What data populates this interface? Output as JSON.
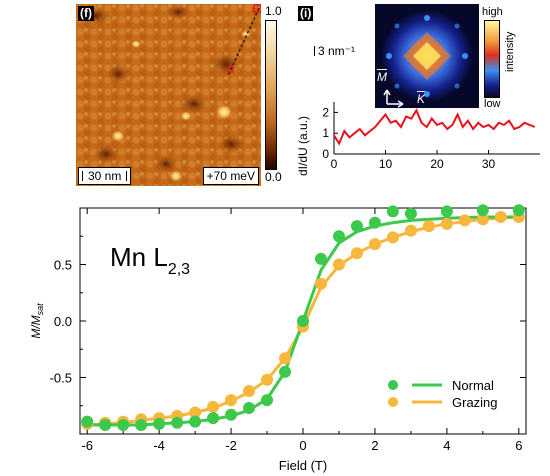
{
  "panel_f": {
    "label": "(f)",
    "scale_bar": "30 nm",
    "energy": "+70 meV",
    "colorbar_max": "1.0",
    "colorbar_min": "0.0"
  },
  "panel_i": {
    "label": "(i)",
    "scale_bar": "3 nm⁻¹",
    "fft_high": "high",
    "fft_low": "low",
    "fft_axis": "intensity",
    "dir_m": "M",
    "dir_k": "K"
  },
  "chart_data": [
    {
      "type": "line",
      "title": "",
      "xlabel": "",
      "ylabel": "dI/dU (a.u.)",
      "xlim": [
        0,
        40
      ],
      "ylim": [
        0,
        2.5
      ],
      "x_ticks": [
        "0",
        "10",
        "20",
        "30"
      ],
      "y_ticks": [
        "0",
        "1",
        "2"
      ],
      "series": [
        {
          "color": "#e8121c",
          "x": [
            0,
            1,
            2,
            3,
            4,
            5,
            6,
            7,
            8,
            9,
            10,
            11,
            12,
            13,
            14,
            15,
            16,
            17,
            18,
            19,
            20,
            21,
            22,
            23,
            24,
            25,
            26,
            27,
            28,
            29,
            30,
            31,
            32,
            33,
            34,
            35,
            36,
            37,
            38,
            39
          ],
          "y": [
            0.9,
            0.5,
            1.1,
            0.8,
            1.0,
            1.2,
            0.9,
            1.1,
            1.3,
            1.6,
            1.9,
            1.5,
            1.6,
            1.3,
            1.8,
            1.7,
            2.1,
            1.5,
            1.3,
            1.7,
            1.4,
            1.5,
            1.2,
            1.4,
            1.9,
            1.3,
            1.6,
            1.2,
            1.5,
            1.3,
            1.4,
            1.2,
            1.5,
            1.4,
            1.6,
            1.2,
            1.3,
            1.5,
            1.4,
            1.3
          ]
        }
      ]
    },
    {
      "type": "scatter",
      "title": "Mn L2,3",
      "xlabel": "Field (T)",
      "ylabel": "M/Msat",
      "xlim": [
        -6.2,
        6.2
      ],
      "ylim": [
        -1.0,
        1.0
      ],
      "x_ticks": [
        "-6",
        "-4",
        "-2",
        "0",
        "2",
        "4",
        "6"
      ],
      "y_ticks": [
        "0.5",
        "0.0",
        "-0.5"
      ],
      "legend": "bottom-right",
      "series": [
        {
          "name": "Normal",
          "color": "#3cc84a",
          "x": [
            -6.0,
            -5.5,
            -5.0,
            -4.5,
            -4.0,
            -3.5,
            -3.0,
            -2.5,
            -2.0,
            -1.5,
            -1.0,
            -0.5,
            0.0,
            0.5,
            1.0,
            1.5,
            2.0,
            2.5,
            3.0,
            4.0,
            5.0,
            6.0
          ],
          "y": [
            -0.89,
            -0.92,
            -0.92,
            -0.92,
            -0.91,
            -0.9,
            -0.89,
            -0.86,
            -0.83,
            -0.77,
            -0.7,
            -0.45,
            0.0,
            0.55,
            0.75,
            0.84,
            0.87,
            0.97,
            0.95,
            0.97,
            0.98,
            0.98
          ],
          "fit_y": [
            -0.92,
            -0.92,
            -0.92,
            -0.92,
            -0.91,
            -0.9,
            -0.89,
            -0.87,
            -0.84,
            -0.79,
            -0.69,
            -0.45,
            0.0,
            0.45,
            0.69,
            0.79,
            0.84,
            0.87,
            0.89,
            0.91,
            0.92,
            0.92
          ]
        },
        {
          "name": "Grazing",
          "color": "#f6b73c",
          "x": [
            -6.0,
            -5.5,
            -5.0,
            -4.5,
            -4.0,
            -3.5,
            -3.0,
            -2.5,
            -2.0,
            -1.5,
            -1.0,
            -0.5,
            0.0,
            0.5,
            1.0,
            1.5,
            2.0,
            2.5,
            3.0,
            3.5,
            4.0,
            4.5,
            5.0,
            5.5,
            6.0
          ],
          "y": [
            -0.91,
            -0.9,
            -0.89,
            -0.87,
            -0.86,
            -0.84,
            -0.81,
            -0.76,
            -0.7,
            -0.62,
            -0.52,
            -0.33,
            -0.05,
            0.33,
            0.5,
            0.6,
            0.68,
            0.74,
            0.8,
            0.84,
            0.86,
            0.89,
            0.9,
            0.92,
            0.92
          ],
          "fit_y": [
            -0.92,
            -0.91,
            -0.9,
            -0.88,
            -0.86,
            -0.84,
            -0.81,
            -0.77,
            -0.71,
            -0.63,
            -0.52,
            -0.33,
            -0.05,
            0.3,
            0.49,
            0.6,
            0.68,
            0.74,
            0.79,
            0.83,
            0.86,
            0.88,
            0.9,
            0.91,
            0.92
          ]
        }
      ]
    }
  ]
}
